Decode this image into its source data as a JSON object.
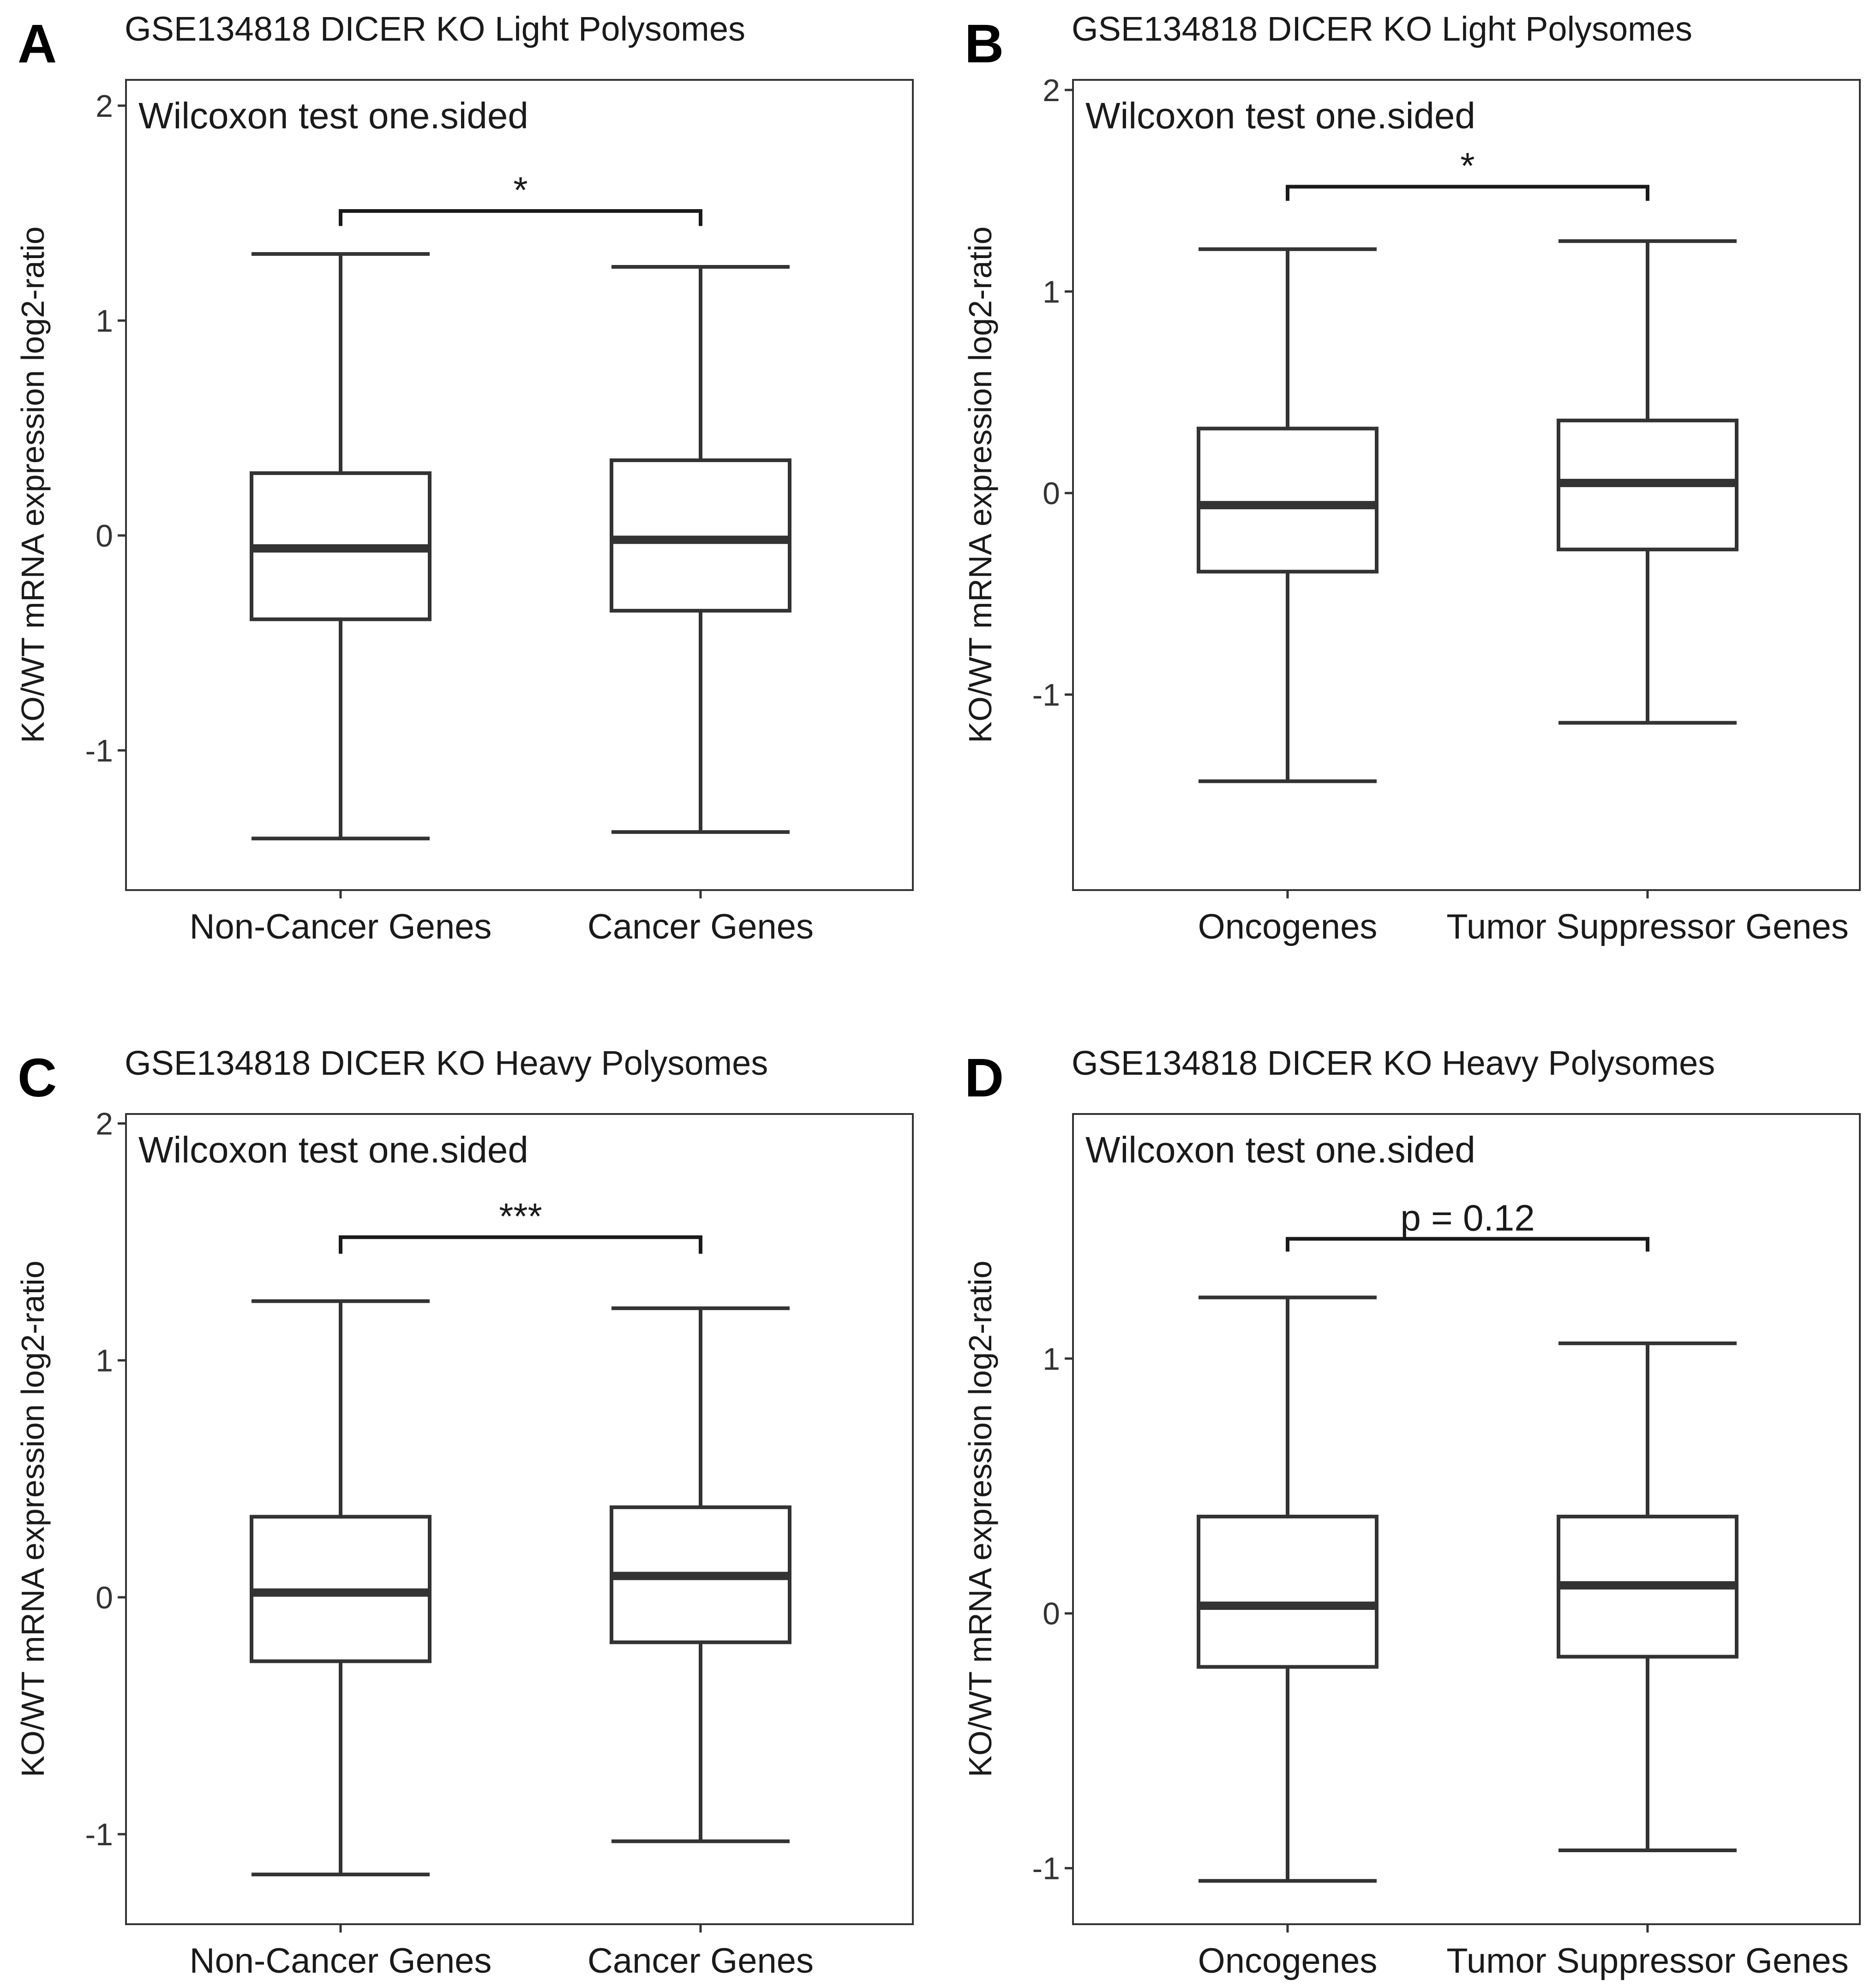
{
  "chart_data": [
    {
      "panel": "A",
      "type": "box",
      "title": "GSE134818 DICER KO Light Polysomes",
      "test_label": "Wilcoxon test one.sided",
      "ylabel": "KO/WT mRNA expression log2-ratio",
      "xlabel": "",
      "ylim": [
        -1.65,
        2.12
      ],
      "yticks": [
        2,
        1,
        0,
        -1
      ],
      "ytick_labels": [
        "2",
        "1",
        "0",
        "-1"
      ],
      "categories": [
        "Non-Cancer Genes",
        "Cancer Genes"
      ],
      "boxes": [
        {
          "category": "Non-Cancer Genes",
          "whisker_low": -1.41,
          "q1": -0.39,
          "median": -0.06,
          "q3": 0.29,
          "whisker_high": 1.31
        },
        {
          "category": "Cancer Genes",
          "whisker_low": -1.38,
          "q1": -0.35,
          "median": -0.02,
          "q3": 0.35,
          "whisker_high": 1.25
        }
      ],
      "significance": {
        "label": "*",
        "y": 1.51,
        "drop": 0.07
      }
    },
    {
      "panel": "B",
      "type": "box",
      "title": "GSE134818 DICER KO Light Polysomes",
      "test_label": "Wilcoxon test one.sided",
      "ylabel": "KO/WT mRNA expression log2-ratio",
      "xlabel": "",
      "ylim": [
        -1.97,
        2.05
      ],
      "yticks": [
        2,
        1,
        0,
        -1
      ],
      "ytick_labels": [
        "2",
        "1",
        "0",
        "-1"
      ],
      "categories": [
        "Oncogenes",
        "Tumor Suppressor Genes"
      ],
      "boxes": [
        {
          "category": "Oncogenes",
          "whisker_low": -1.43,
          "q1": -0.39,
          "median": -0.06,
          "q3": 0.32,
          "whisker_high": 1.21
        },
        {
          "category": "Tumor Suppressor Genes",
          "whisker_low": -1.14,
          "q1": -0.28,
          "median": 0.05,
          "q3": 0.36,
          "whisker_high": 1.25
        }
      ],
      "significance": {
        "label": "*",
        "y": 1.52,
        "drop": 0.07
      }
    },
    {
      "panel": "C",
      "type": "box",
      "title": "GSE134818 DICER KO Heavy Polysomes",
      "test_label": "Wilcoxon test one.sided",
      "ylabel": "KO/WT mRNA expression log2-ratio",
      "xlabel": "",
      "ylim": [
        -1.38,
        2.04
      ],
      "yticks": [
        2,
        1,
        0,
        -1
      ],
      "ytick_labels": [
        "2",
        "1",
        "0",
        "-1"
      ],
      "categories": [
        "Non-Cancer Genes",
        "Cancer Genes"
      ],
      "boxes": [
        {
          "category": "Non-Cancer Genes",
          "whisker_low": -1.17,
          "q1": -0.27,
          "median": 0.02,
          "q3": 0.34,
          "whisker_high": 1.25
        },
        {
          "category": "Cancer Genes",
          "whisker_low": -1.03,
          "q1": -0.19,
          "median": 0.09,
          "q3": 0.38,
          "whisker_high": 1.22
        }
      ],
      "significance": {
        "label": "***",
        "y": 1.52,
        "drop": 0.07
      }
    },
    {
      "panel": "D",
      "type": "box",
      "title": "GSE134818 DICER KO Heavy Polysomes",
      "test_label": "Wilcoxon test one.sided",
      "ylabel": "KO/WT mRNA expression log2-ratio",
      "xlabel": "",
      "ylim": [
        -1.22,
        1.96
      ],
      "yticks": [
        1,
        0,
        -1
      ],
      "ytick_labels": [
        "1",
        "0",
        "-1"
      ],
      "categories": [
        "Oncogenes",
        "Tumor Suppressor Genes"
      ],
      "boxes": [
        {
          "category": "Oncogenes",
          "whisker_low": -1.05,
          "q1": -0.21,
          "median": 0.03,
          "q3": 0.38,
          "whisker_high": 1.24
        },
        {
          "category": "Tumor Suppressor Genes",
          "whisker_low": -0.93,
          "q1": -0.17,
          "median": 0.11,
          "q3": 0.38,
          "whisker_high": 1.06
        }
      ],
      "significance": {
        "label": "p = 0.12",
        "y": 1.47,
        "drop": 0.05
      }
    }
  ]
}
